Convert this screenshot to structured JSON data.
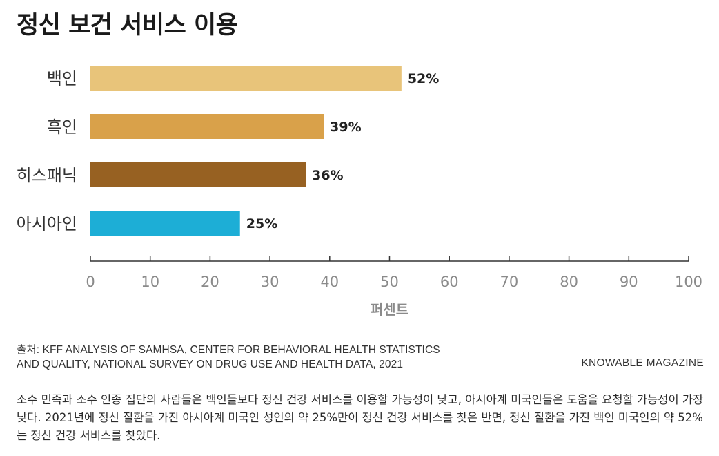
{
  "title": "정신 보건 서비스 이용",
  "source": {
    "line1": "출처: KFF ANALYSIS OF SAMHSA, CENTER FOR BEHAVIORAL HEALTH STATISTICS",
    "line2": "AND QUALITY, NATIONAL SURVEY ON DRUG USE AND HEALTH DATA, 2021"
  },
  "brand": "KNOWABLE MAGAZINE",
  "caption": "소수 민족과 소수 인종 집단의 사람들은 백인들보다 정신 건강 서비스를 이용할 가능성이 낮고, 아시아계 미국인들은 도움을 요청할 가능성이 가장 낮다. 2021년에 정신 질환을 가진 아시아계 미국인 성인의 약 25%만이 정신 건강 서비스를 찾은 반면, 정신 질환을 가진 백인 미국인의 약 52%는 정신 건강 서비스를 찾았다.",
  "chart_data": {
    "type": "bar",
    "orientation": "horizontal",
    "categories": [
      "백인",
      "흑인",
      "히스패닉",
      "아시아인"
    ],
    "values": [
      52,
      39,
      36,
      25
    ],
    "value_labels": [
      "52%",
      "39%",
      "36%",
      "25%"
    ],
    "colors": [
      "#E8C47A",
      "#D9A14A",
      "#976122",
      "#1DAED6"
    ],
    "xlabel": "퍼센트",
    "xlim": [
      0,
      100
    ],
    "xticks": [
      0,
      10,
      20,
      30,
      40,
      50,
      60,
      70,
      80,
      90,
      100
    ],
    "grid": false
  }
}
